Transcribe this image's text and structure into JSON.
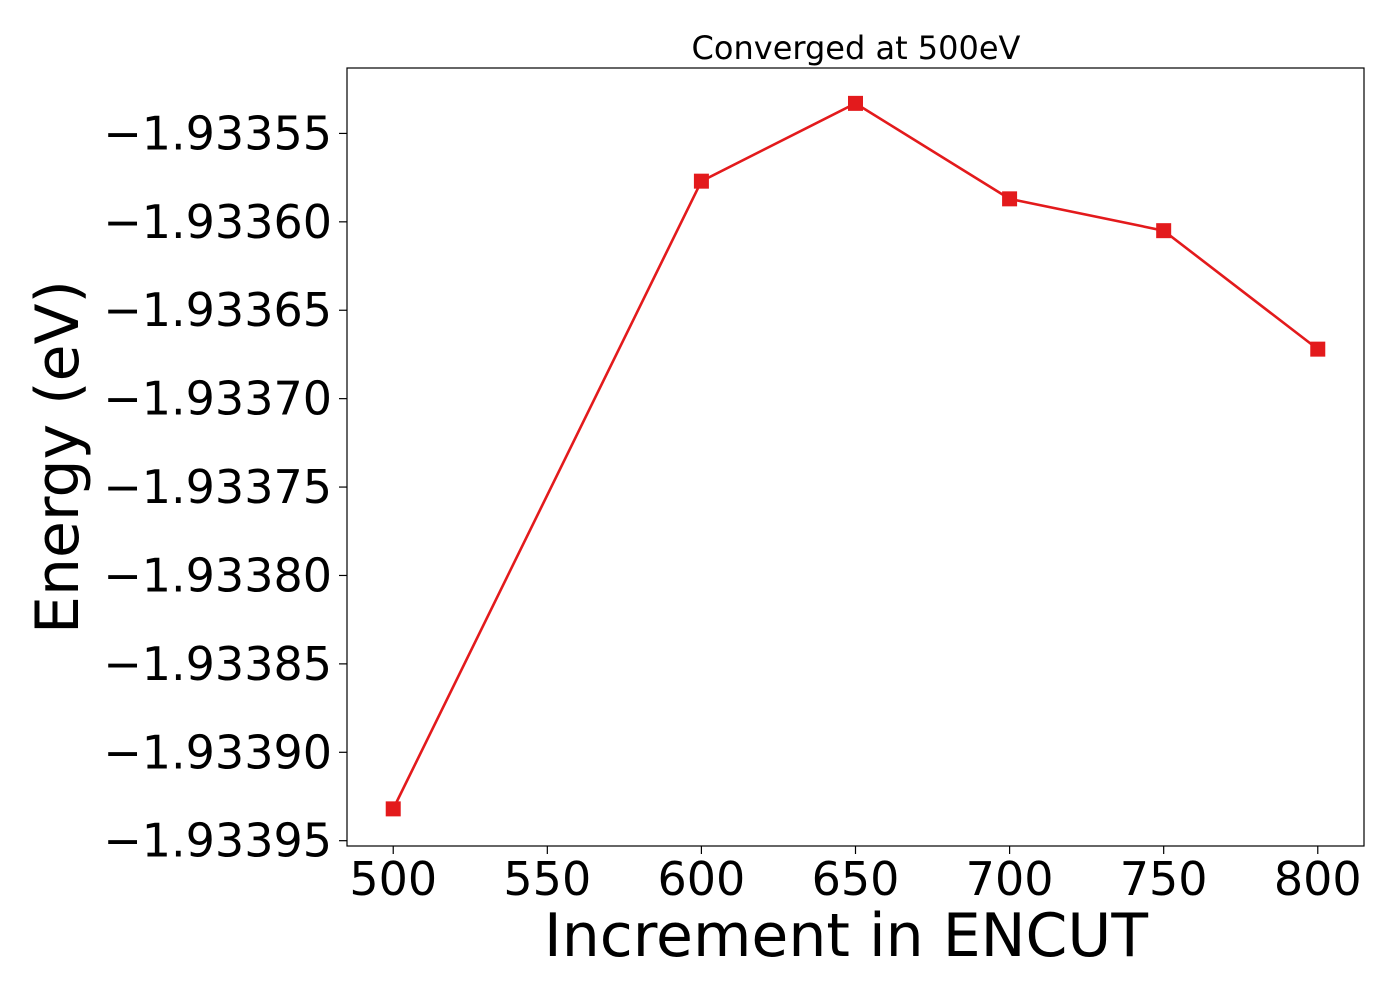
{
  "chart_data": {
    "type": "line",
    "title": "Converged at 500eV",
    "xlabel": "Increment in ENCUT",
    "ylabel": "Energy (eV)",
    "x": [
      500,
      600,
      650,
      700,
      750,
      800
    ],
    "series": [
      {
        "values": [
          -1.933932,
          -1.933577,
          -1.933533,
          -1.933587,
          -1.933605,
          -1.933672
        ],
        "color": "#e31a1c",
        "marker": "square"
      }
    ],
    "xlim": [
      485,
      815
    ],
    "ylim": [
      -1.933953,
      -1.933513
    ],
    "xticks": [
      500,
      550,
      600,
      650,
      700,
      750,
      800
    ],
    "xtick_labels": [
      "500",
      "550",
      "600",
      "650",
      "700",
      "750",
      "800"
    ],
    "yticks": [
      -1.93355,
      -1.9336,
      -1.93365,
      -1.9337,
      -1.93375,
      -1.9338,
      -1.93385,
      -1.9339,
      -1.93395
    ],
    "ytick_labels": [
      "−1.93355",
      "−1.93360",
      "−1.93365",
      "−1.93370",
      "−1.93375",
      "−1.93380",
      "−1.93385",
      "−1.93390",
      "−1.93395"
    ],
    "grid": false,
    "legend": false
  }
}
